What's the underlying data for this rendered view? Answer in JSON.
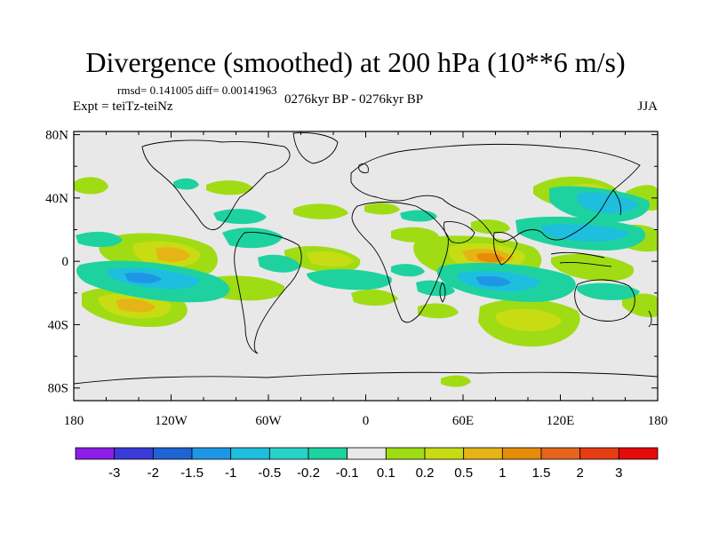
{
  "title": "Divergence (smoothed) at 200 hPa (10**6 m/s)",
  "rmsd_line": "rmsd= 0.141005 diff= 0.00141963",
  "period": "0276kyr BP - 0276kyr BP",
  "experiment": "Expt = teiTz-teiNz",
  "season": "JJA",
  "map": {
    "x_ticks": [
      "180",
      "120W",
      "60W",
      "0",
      "60E",
      "120E",
      "180"
    ],
    "y_ticks": [
      "80N",
      "40N",
      "0",
      "40S",
      "80S"
    ],
    "background_color": "#e8e8e8"
  },
  "colorbar": {
    "labels": [
      "-3",
      "-2",
      "-1.5",
      "-1",
      "-0.5",
      "-0.2",
      "-0.1",
      "0.1",
      "0.2",
      "0.5",
      "1",
      "1.5",
      "2",
      "3"
    ],
    "colors": [
      "#8c1ee8",
      "#3b3bd9",
      "#1e64d2",
      "#1e96e6",
      "#1ebede",
      "#28d2c8",
      "#1ed2a0",
      "#e8e8e8",
      "#a0dc14",
      "#c8dc14",
      "#e6b414",
      "#e68c0a",
      "#e6641e",
      "#e63c14",
      "#e60a0a"
    ]
  }
}
